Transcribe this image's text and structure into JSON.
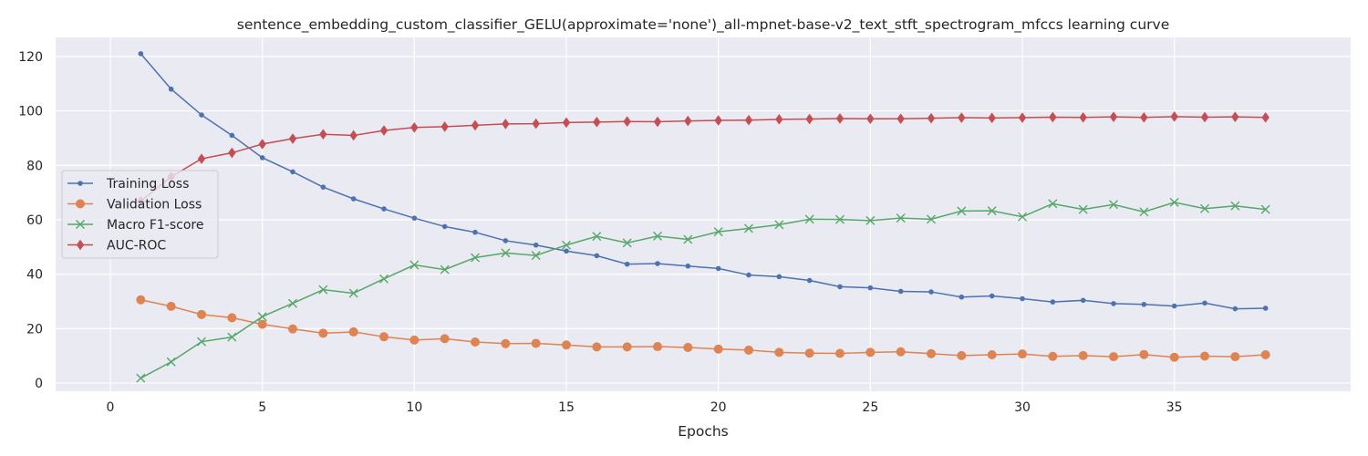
{
  "chart_data": {
    "type": "line",
    "title": "sentence_embedding_custom_classifier_GELU(approximate='none')_all-mpnet-base-v2_text_stft_spectrogram_mfccs learning curve",
    "xlabel": "Epochs",
    "ylabel": "",
    "xlim": [
      -1.8,
      40.8
    ],
    "ylim": [
      -3,
      127
    ],
    "xticks": [
      0,
      5,
      10,
      15,
      20,
      25,
      30,
      35
    ],
    "yticks": [
      0,
      20,
      40,
      60,
      80,
      100,
      120
    ],
    "grid": true,
    "legend_position": "center-left",
    "x": [
      1,
      2,
      3,
      4,
      5,
      6,
      7,
      8,
      9,
      10,
      11,
      12,
      13,
      14,
      15,
      16,
      17,
      18,
      19,
      20,
      21,
      22,
      23,
      24,
      25,
      26,
      27,
      28,
      29,
      30,
      31,
      32,
      33,
      34,
      35,
      36,
      37,
      38
    ],
    "series": [
      {
        "name": "Training Loss",
        "color": "#4c72b0",
        "marker": "dot",
        "values": [
          121,
          108,
          98.5,
          91,
          82.8,
          77.6,
          72,
          67.7,
          64,
          60.6,
          57.5,
          55.4,
          52.3,
          50.7,
          48.5,
          46.8,
          43.7,
          43.9,
          43,
          42.1,
          39.7,
          39.1,
          37.7,
          35.4,
          35,
          33.7,
          33.5,
          31.6,
          32,
          31,
          29.8,
          30.4,
          29.2,
          28.9,
          28.3,
          29.4,
          27.3,
          27.5
        ]
      },
      {
        "name": "Validation Loss",
        "color": "#dd8452",
        "marker": "circle",
        "values": [
          30.6,
          28.2,
          25.2,
          24,
          21.6,
          19.9,
          18.3,
          18.8,
          17,
          15.8,
          16.3,
          15.1,
          14.5,
          14.6,
          14,
          13.3,
          13.3,
          13.4,
          13.1,
          12.5,
          12.1,
          11.3,
          11,
          10.9,
          11.3,
          11.5,
          10.8,
          10.1,
          10.4,
          10.7,
          9.8,
          10.1,
          9.7,
          10.5,
          9.5,
          9.9,
          9.7,
          10.4
        ]
      },
      {
        "name": "Macro F1-score",
        "color": "#55a868",
        "marker": "x",
        "values": [
          1.8,
          7.8,
          15.2,
          16.9,
          24.4,
          29.3,
          34.3,
          33,
          38.3,
          43.4,
          41.7,
          46.1,
          47.8,
          46.9,
          50.7,
          53.9,
          51.5,
          54,
          52.8,
          55.6,
          56.8,
          58.2,
          60.2,
          60.1,
          59.7,
          60.6,
          60.2,
          63.2,
          63.3,
          61.1,
          65.9,
          63.8,
          65.6,
          62.9,
          66.4,
          64.1,
          65.1,
          63.8
        ]
      },
      {
        "name": "AUC-ROC",
        "color": "#c44e52",
        "marker": "diamond",
        "values": [
          66.8,
          75.8,
          82.4,
          84.6,
          87.8,
          89.8,
          91.4,
          91,
          92.8,
          93.9,
          94.2,
          94.7,
          95.2,
          95.3,
          95.7,
          95.9,
          96.1,
          96,
          96.3,
          96.5,
          96.6,
          96.9,
          97,
          97.2,
          97.1,
          97.1,
          97.3,
          97.5,
          97.4,
          97.5,
          97.7,
          97.6,
          97.8,
          97.6,
          97.9,
          97.7,
          97.8,
          97.6
        ]
      }
    ]
  }
}
